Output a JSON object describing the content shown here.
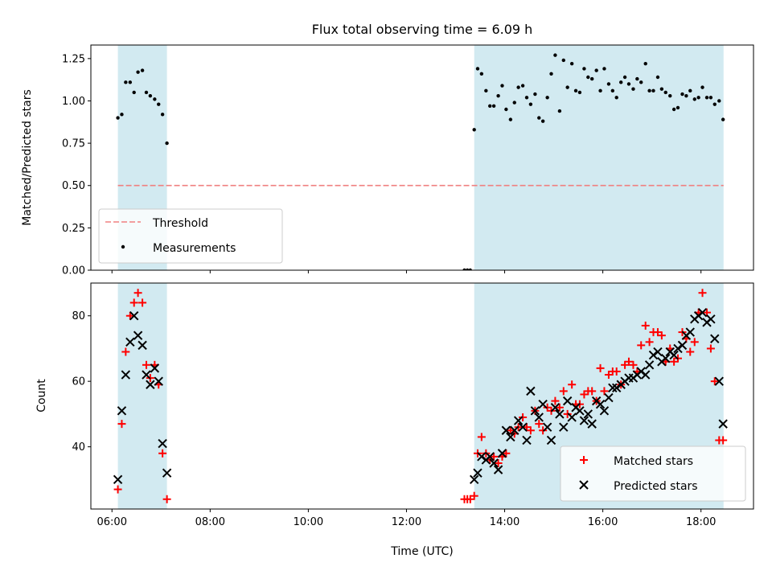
{
  "chart_data": {
    "title": "Flux total observing time = 6.09 h",
    "xlabel": "Time (UTC)",
    "x_unit": "hours UTC",
    "xlim": [
      5.57,
      19.07
    ],
    "x_ticks": [
      "06:00",
      "08:00",
      "10:00",
      "12:00",
      "14:00",
      "16:00",
      "18:00"
    ],
    "x_tick_values": [
      6,
      8,
      10,
      12,
      14,
      16,
      18
    ],
    "shaded_intervals": [
      [
        6.12,
        7.12
      ],
      [
        13.38,
        18.46
      ]
    ],
    "shade_color": "#add8e6",
    "panels": [
      {
        "type": "scatter",
        "ylabel": "Matched/Predicted stars",
        "ylim": [
          0,
          1.33
        ],
        "y_ticks": [
          "0.00",
          "0.25",
          "0.50",
          "0.75",
          "1.00",
          "1.25"
        ],
        "y_tick_values": [
          0,
          0.25,
          0.5,
          0.75,
          1.0,
          1.25
        ],
        "legend_position": "lower-left",
        "threshold": {
          "name": "Threshold",
          "y": 0.5,
          "x_range": [
            6.12,
            18.46
          ],
          "color": "#f08080"
        },
        "series": [
          {
            "name": "Measurements",
            "color": "#000000",
            "x": [
              6.12,
              6.2,
              6.28,
              6.37,
              6.45,
              6.53,
              6.62,
              6.7,
              6.78,
              6.87,
              6.95,
              7.03,
              7.12,
              13.18,
              13.24,
              13.3,
              13.38,
              13.45,
              13.53,
              13.62,
              13.7,
              13.78,
              13.87,
              13.95,
              14.03,
              14.12,
              14.2,
              14.28,
              14.37,
              14.45,
              14.53,
              14.62,
              14.7,
              14.78,
              14.87,
              14.95,
              15.03,
              15.12,
              15.2,
              15.28,
              15.37,
              15.45,
              15.53,
              15.62,
              15.7,
              15.78,
              15.87,
              15.95,
              16.03,
              16.12,
              16.2,
              16.28,
              16.37,
              16.45,
              16.53,
              16.62,
              16.7,
              16.78,
              16.87,
              16.95,
              17.03,
              17.12,
              17.2,
              17.28,
              17.37,
              17.45,
              17.53,
              17.62,
              17.7,
              17.78,
              17.87,
              17.95,
              18.03,
              18.12,
              18.2,
              18.28,
              18.37,
              18.45
            ],
            "y": [
              0.9,
              0.92,
              1.11,
              1.11,
              1.05,
              1.17,
              1.18,
              1.05,
              1.03,
              1.01,
              0.98,
              0.92,
              0.75,
              0.0,
              0.0,
              0.0,
              0.83,
              1.19,
              1.16,
              1.06,
              0.97,
              0.97,
              1.03,
              1.09,
              0.95,
              0.89,
              0.99,
              1.08,
              1.09,
              1.02,
              0.98,
              1.04,
              0.9,
              0.88,
              1.02,
              1.16,
              1.27,
              0.94,
              1.24,
              1.08,
              1.22,
              1.06,
              1.05,
              1.19,
              1.14,
              1.13,
              1.18,
              1.06,
              1.19,
              1.1,
              1.06,
              1.02,
              1.11,
              1.14,
              1.1,
              1.07,
              1.13,
              1.11,
              1.22,
              1.06,
              1.06,
              1.14,
              1.07,
              1.05,
              1.03,
              0.95,
              0.96,
              1.04,
              1.03,
              1.06,
              1.01,
              1.02,
              1.08,
              1.02,
              1.02,
              0.98,
              1.0,
              0.89
            ]
          }
        ]
      },
      {
        "type": "scatter",
        "ylabel": "Count",
        "ylim": [
          21,
          90
        ],
        "y_ticks": [
          "40",
          "60",
          "80"
        ],
        "y_tick_values": [
          40,
          60,
          80
        ],
        "legend_position": "lower-right",
        "series": [
          {
            "name": "Matched stars",
            "marker": "+",
            "color": "#ff0000",
            "x": [
              6.12,
              6.2,
              6.28,
              6.37,
              6.45,
              6.53,
              6.62,
              6.7,
              6.78,
              6.87,
              6.95,
              7.03,
              7.12,
              13.18,
              13.24,
              13.3,
              13.38,
              13.45,
              13.53,
              13.62,
              13.7,
              13.78,
              13.87,
              13.95,
              14.03,
              14.12,
              14.2,
              14.28,
              14.37,
              14.45,
              14.53,
              14.62,
              14.7,
              14.78,
              14.87,
              14.95,
              15.03,
              15.12,
              15.2,
              15.28,
              15.37,
              15.45,
              15.53,
              15.62,
              15.7,
              15.78,
              15.87,
              15.95,
              16.03,
              16.12,
              16.2,
              16.28,
              16.37,
              16.45,
              16.53,
              16.62,
              16.7,
              16.78,
              16.87,
              16.95,
              17.03,
              17.12,
              17.2,
              17.28,
              17.37,
              17.45,
              17.53,
              17.62,
              17.7,
              17.78,
              17.87,
              17.95,
              18.03,
              18.12,
              18.2,
              18.28,
              18.37,
              18.45
            ],
            "y": [
              27,
              47,
              69,
              80,
              84,
              87,
              84,
              65,
              61,
              65,
              59,
              38,
              24,
              24,
              24,
              24,
              25,
              38,
              43,
              38,
              36,
              37,
              35,
              37,
              38,
              45,
              44,
              46,
              49,
              46,
              45,
              51,
              47,
              45,
              52,
              51,
              54,
              52,
              57,
              50,
              59,
              53,
              53,
              56,
              57,
              57,
              54,
              64,
              57,
              62,
              63,
              63,
              59,
              65,
              66,
              65,
              63,
              71,
              77,
              72,
              75,
              75,
              74,
              66,
              70,
              66,
              67,
              75,
              73,
              69,
              72,
              81,
              87,
              81,
              70,
              60,
              42,
              42
            ]
          },
          {
            "name": "Predicted stars",
            "marker": "x",
            "color": "#000000",
            "x": [
              6.12,
              6.2,
              6.28,
              6.37,
              6.45,
              6.53,
              6.62,
              6.7,
              6.78,
              6.87,
              6.95,
              7.03,
              7.12,
              13.38,
              13.45,
              13.53,
              13.62,
              13.7,
              13.78,
              13.87,
              13.95,
              14.03,
              14.12,
              14.2,
              14.28,
              14.37,
              14.45,
              14.53,
              14.62,
              14.7,
              14.78,
              14.87,
              14.95,
              15.03,
              15.12,
              15.2,
              15.28,
              15.37,
              15.45,
              15.53,
              15.62,
              15.7,
              15.78,
              15.87,
              15.95,
              16.03,
              16.12,
              16.2,
              16.28,
              16.37,
              16.45,
              16.53,
              16.62,
              16.7,
              16.78,
              16.87,
              16.95,
              17.03,
              17.12,
              17.2,
              17.28,
              17.37,
              17.45,
              17.53,
              17.62,
              17.7,
              17.78,
              17.87,
              17.95,
              18.03,
              18.12,
              18.2,
              18.28,
              18.37,
              18.45
            ],
            "y": [
              30,
              51,
              62,
              72,
              80,
              74,
              71,
              62,
              59,
              64,
              60,
              41,
              32,
              30,
              32,
              37,
              36,
              37,
              35,
              33,
              38,
              45,
              43,
              45,
              48,
              46,
              42,
              57,
              51,
              49,
              53,
              46,
              42,
              52,
              50,
              46,
              54,
              49,
              52,
              51,
              48,
              50,
              47,
              54,
              53,
              51,
              55,
              58,
              58,
              59,
              60,
              61,
              61,
              62,
              63,
              62,
              65,
              68,
              69,
              66,
              67,
              69,
              68,
              70,
              71,
              74,
              75,
              79,
              80,
              81,
              78,
              79,
              73,
              60,
              47
            ]
          }
        ]
      }
    ]
  }
}
